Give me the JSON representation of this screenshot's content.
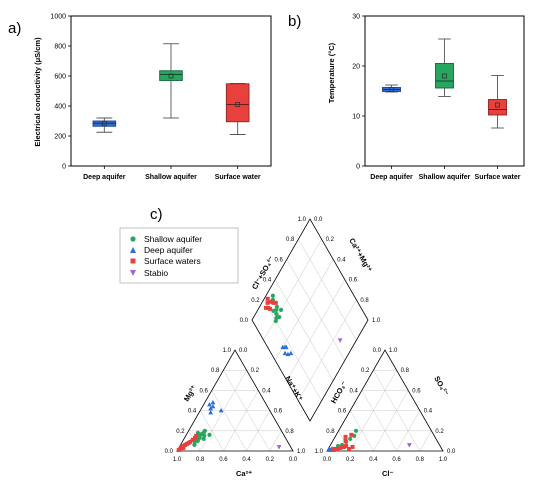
{
  "panel_labels": {
    "a": "a)",
    "b": "b)",
    "c": "c)"
  },
  "chart_data": [
    {
      "type": "box",
      "ylabel": "Electrical conductivity (μS/cm)",
      "ylim": [
        0,
        1000
      ],
      "yticks": [
        "0",
        "200",
        "400",
        "600",
        "800",
        "1000"
      ],
      "categories": [
        "Deep aquifer",
        "Shallow aquifer",
        "Surface water"
      ],
      "boxes": [
        {
          "min": 225,
          "q1": 265,
          "median": 285,
          "q3": 300,
          "max": 320,
          "mean": 285,
          "color": "#2e6fd9"
        },
        {
          "min": 320,
          "q1": 570,
          "median": 610,
          "q3": 635,
          "max": 815,
          "mean": 600,
          "color": "#27a660"
        },
        {
          "min": 210,
          "q1": 295,
          "median": 410,
          "q3": 548,
          "max": 550,
          "mean": 410,
          "color": "#e8403d"
        }
      ]
    },
    {
      "type": "box",
      "ylabel": "Temperature (°C)",
      "ylim": [
        0,
        30
      ],
      "yticks": [
        "0",
        "10",
        "20",
        "30"
      ],
      "categories": [
        "Deep aquifer",
        "Shallow aquifer",
        "Surface water"
      ],
      "boxes": [
        {
          "min": 14.8,
          "q1": 14.9,
          "median": 15.3,
          "q3": 15.7,
          "max": 16.2,
          "mean": 15.3,
          "color": "#2e6fd9"
        },
        {
          "min": 13.9,
          "q1": 15.6,
          "median": 17.0,
          "q3": 20.5,
          "max": 25.4,
          "mean": 18.0,
          "color": "#27a660"
        },
        {
          "min": 7.6,
          "q1": 10.2,
          "median": 11.3,
          "q3": 13.3,
          "max": 18.1,
          "mean": 12.2,
          "color": "#e8403d"
        }
      ]
    },
    {
      "type": "piper",
      "legend": [
        {
          "name": "Shallow aquifer",
          "color": "#27a660",
          "marker": "circle"
        },
        {
          "name": "Deep aquifer",
          "color": "#2e6fd9",
          "marker": "triangle"
        },
        {
          "name": "Surface waters",
          "color": "#e8403d",
          "marker": "square"
        },
        {
          "name": "Stabio",
          "color": "#a060e0",
          "marker": "triangle-down"
        }
      ],
      "axis_labels": {
        "ca": "Ca²⁺",
        "mg": "Mg²⁺",
        "nak": "Na⁺+K⁺",
        "cl": "Cl⁻",
        "hco3": "HCO₃⁻",
        "so4": "SO₄²⁻",
        "clso4": "Cl⁻+SO₄²⁻",
        "camg": "Ca²⁺+Mg²⁺"
      },
      "tick_labels": [
        "0.0",
        "0.2",
        "0.4",
        "0.6",
        "0.8",
        "1.0"
      ],
      "cation_points": {
        "Shallow aquifer": [
          [
            0.82,
            0.06
          ],
          [
            0.8,
            0.09
          ],
          [
            0.78,
            0.11
          ],
          [
            0.75,
            0.14
          ],
          [
            0.74,
            0.13
          ],
          [
            0.72,
            0.16
          ],
          [
            0.7,
            0.17
          ],
          [
            0.68,
            0.18
          ],
          [
            0.66,
            0.2
          ],
          [
            0.64,
            0.16
          ],
          [
            0.73,
            0.18
          ],
          [
            0.77,
            0.1
          ],
          [
            0.69,
            0.15
          ],
          [
            0.71,
            0.12
          ]
        ],
        "Deep aquifer": [
          [
            0.52,
            0.38
          ],
          [
            0.5,
            0.42
          ],
          [
            0.47,
            0.44
          ],
          [
            0.42,
            0.4
          ],
          [
            0.45,
            0.48
          ],
          [
            0.49,
            0.46
          ]
        ],
        "Surface waters": [
          [
            0.98,
            0.01
          ],
          [
            0.96,
            0.02
          ],
          [
            0.94,
            0.04
          ],
          [
            0.92,
            0.05
          ],
          [
            0.9,
            0.06
          ],
          [
            0.88,
            0.07
          ],
          [
            0.86,
            0.08
          ],
          [
            0.84,
            0.09
          ],
          [
            0.78,
            0.13
          ],
          [
            0.76,
            0.15
          ],
          [
            0.93,
            0.03
          ],
          [
            0.81,
            0.11
          ]
        ],
        "Stabio": [
          [
            0.1,
            0.04
          ]
        ]
      },
      "anion_points": {
        "Shallow aquifer": [
          [
            0.03,
            0.01
          ],
          [
            0.05,
            0.02
          ],
          [
            0.08,
            0.03
          ],
          [
            0.1,
            0.06
          ],
          [
            0.12,
            0.09
          ],
          [
            0.14,
            0.12
          ],
          [
            0.16,
            0.15
          ],
          [
            0.15,
            0.2
          ],
          [
            0.13,
            0.04
          ],
          [
            0.07,
            0.05
          ]
        ],
        "Deep aquifer": [
          [
            0.01,
            0.01
          ],
          [
            0.02,
            0.01
          ],
          [
            0.03,
            0.02
          ],
          [
            0.04,
            0.02
          ],
          [
            0.05,
            0.01
          ],
          [
            0.06,
            0.02
          ]
        ],
        "Surface waters": [
          [
            0.05,
            0.01
          ],
          [
            0.08,
            0.02
          ],
          [
            0.1,
            0.03
          ],
          [
            0.12,
            0.04
          ],
          [
            0.14,
            0.05
          ],
          [
            0.18,
            0.02
          ],
          [
            0.2,
            0.04
          ],
          [
            0.11,
            0.1
          ],
          [
            0.09,
            0.14
          ],
          [
            0.13,
            0.16
          ]
        ],
        "Stabio": [
          [
            0.68,
            0.06
          ]
        ]
      },
      "diamond_points": {
        "Shallow aquifer": [
          [
            0.22,
            0.8
          ],
          [
            0.24,
            0.82
          ],
          [
            0.26,
            0.84
          ],
          [
            0.28,
            0.85
          ],
          [
            0.2,
            0.79
          ],
          [
            0.23,
            0.86
          ],
          [
            0.25,
            0.78
          ],
          [
            0.3,
            0.8
          ],
          [
            0.28,
            0.92
          ],
          [
            0.3,
            0.94
          ]
        ],
        "Deep aquifer": [
          [
            0.12,
            0.55
          ],
          [
            0.14,
            0.52
          ],
          [
            0.15,
            0.58
          ],
          [
            0.17,
            0.5
          ],
          [
            0.13,
            0.6
          ],
          [
            0.16,
            0.57
          ]
        ],
        "Surface waters": [
          [
            0.2,
            0.92
          ],
          [
            0.22,
            0.95
          ],
          [
            0.18,
            0.94
          ],
          [
            0.27,
            0.9
          ],
          [
            0.24,
            0.97
          ],
          [
            0.21,
            0.9
          ],
          [
            0.29,
            0.88
          ],
          [
            0.25,
            0.93
          ]
        ],
        "Stabio": [
          [
            0.66,
            0.14
          ]
        ]
      }
    }
  ]
}
